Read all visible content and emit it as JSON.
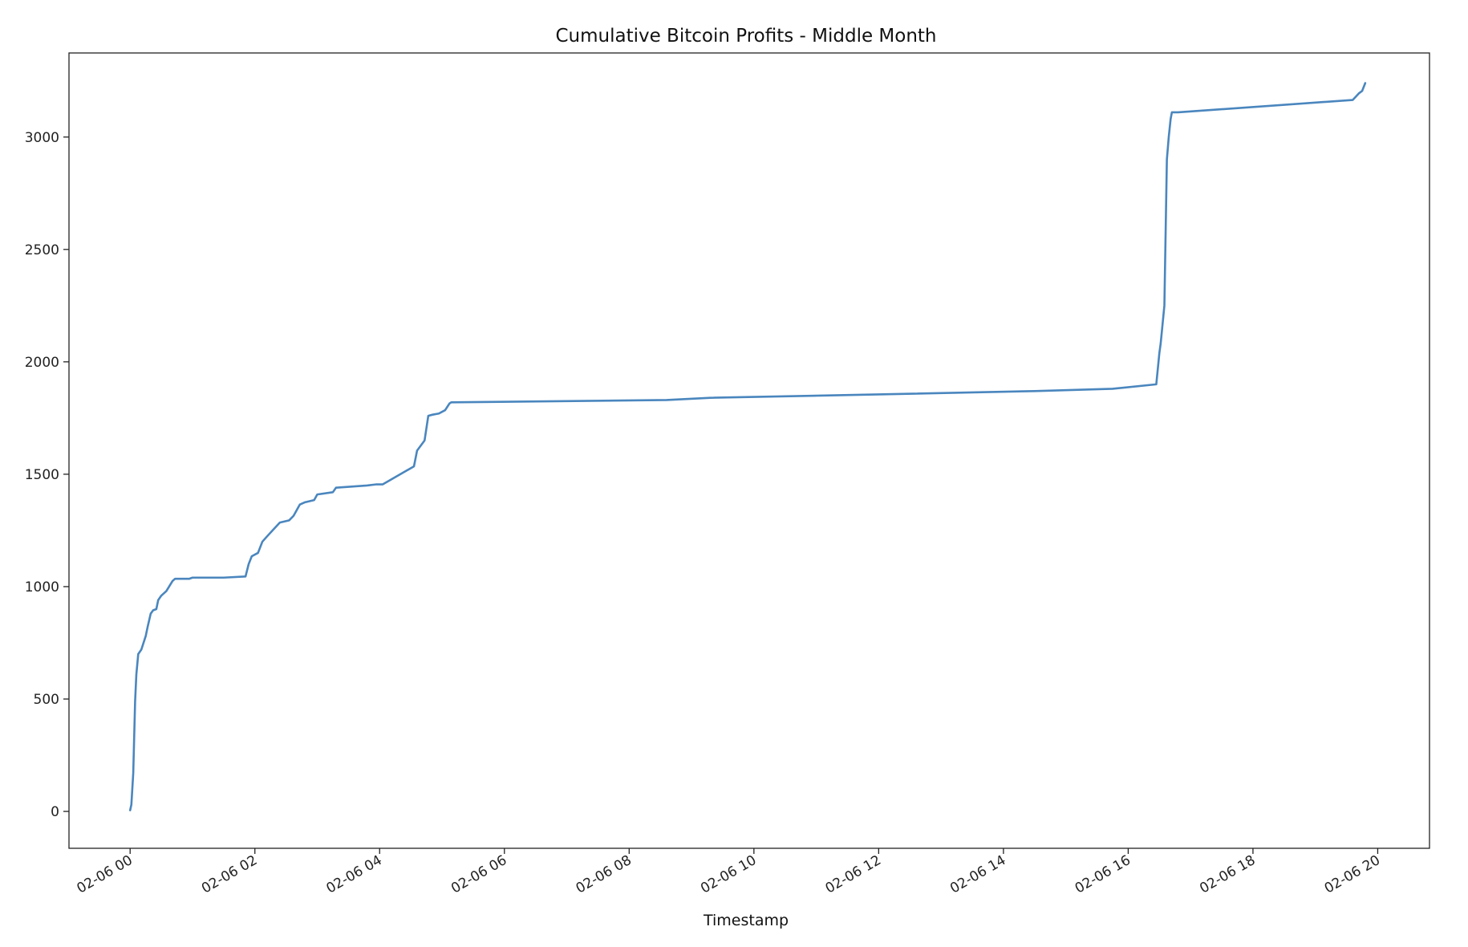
{
  "chart_data": {
    "type": "line",
    "title": "Cumulative Bitcoin Profits - Middle Month",
    "xlabel": "Timestamp",
    "ylabel": "",
    "x_unit": "hours from 02-06 00:00",
    "xlim": [
      -0.98,
      20.83
    ],
    "ylim": [
      -164,
      3374
    ],
    "xticks": [
      0,
      2,
      4,
      6,
      8,
      10,
      12,
      14,
      16,
      18,
      20
    ],
    "xtick_labels": [
      "02-06 00",
      "02-06 02",
      "02-06 04",
      "02-06 06",
      "02-06 08",
      "02-06 10",
      "02-06 12",
      "02-06 14",
      "02-06 16",
      "02-06 18",
      "02-06 20"
    ],
    "yticks": [
      0,
      500,
      1000,
      1500,
      2000,
      2500,
      3000
    ],
    "ytick_labels": [
      "0",
      "500",
      "1000",
      "1500",
      "2000",
      "2500",
      "3000"
    ],
    "grid": false,
    "legend": null,
    "series": [
      {
        "color": "#4a86be",
        "x": [
          0.0,
          0.02,
          0.05,
          0.08,
          0.1,
          0.13,
          0.18,
          0.25,
          0.28,
          0.33,
          0.37,
          0.42,
          0.45,
          0.5,
          0.58,
          0.68,
          0.72,
          0.78,
          0.95,
          1.0,
          1.08,
          1.5,
          1.85,
          1.9,
          1.95,
          2.05,
          2.12,
          2.2,
          2.3,
          2.4,
          2.55,
          2.62,
          2.72,
          2.8,
          2.95,
          3.0,
          3.25,
          3.3,
          3.8,
          3.95,
          4.05,
          4.55,
          4.6,
          4.72,
          4.78,
          4.85,
          4.95,
          5.05,
          5.12,
          5.15,
          8.6,
          9.3,
          12.0,
          14.5,
          15.75,
          16.45,
          16.5,
          16.52,
          16.58,
          16.62,
          16.65,
          16.68,
          16.7,
          16.72,
          16.75,
          16.8,
          19.6,
          19.65,
          19.7,
          19.75,
          19.8
        ],
        "y": [
          5,
          30,
          170,
          490,
          610,
          700,
          720,
          780,
          820,
          880,
          895,
          900,
          940,
          960,
          980,
          1025,
          1035,
          1035,
          1035,
          1040,
          1040,
          1040,
          1045,
          1100,
          1135,
          1150,
          1200,
          1225,
          1255,
          1285,
          1295,
          1315,
          1365,
          1375,
          1385,
          1410,
          1420,
          1440,
          1450,
          1455,
          1455,
          1535,
          1605,
          1650,
          1760,
          1765,
          1770,
          1785,
          1815,
          1820,
          1830,
          1840,
          1855,
          1870,
          1880,
          1900,
          2040,
          2080,
          2250,
          2900,
          3000,
          3080,
          3110,
          3110,
          3110,
          3110,
          3165,
          3180,
          3195,
          3205,
          3240
        ]
      }
    ]
  }
}
